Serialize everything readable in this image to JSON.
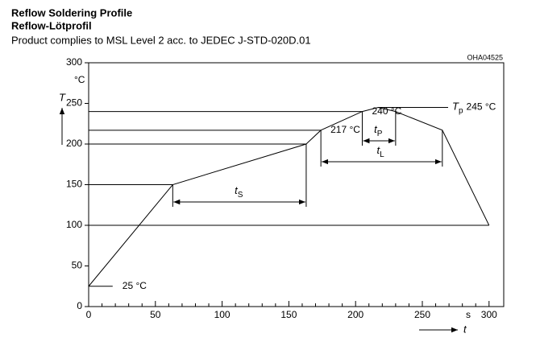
{
  "chart_data": {
    "type": "line",
    "title": "Reflow Soldering Profile",
    "subtitle": "Reflow-Lötprofil",
    "description": "Product complies to MSL Level 2 acc. to JEDEC J-STD-020D.01",
    "code": "OHA04525",
    "y_label": "T",
    "y_unit": "°C",
    "x_label": "t",
    "x_unit": "s",
    "x": [
      0,
      63,
      163,
      174,
      205,
      217,
      230,
      265,
      300
    ],
    "values": [
      25,
      150,
      200,
      217,
      240,
      245,
      240,
      217,
      100
    ],
    "color": "#000000",
    "xlim": [
      0,
      311
    ],
    "ylim": [
      0,
      300
    ],
    "xticks": [
      0,
      50,
      100,
      150,
      200,
      250,
      300
    ],
    "xminorticks": [
      10,
      20,
      30,
      40,
      60,
      70,
      80,
      90,
      110,
      120,
      130,
      140,
      160,
      170,
      180,
      190,
      210,
      220,
      230,
      240,
      260,
      270,
      280,
      290
    ],
    "yticks": [
      0,
      50,
      100,
      150,
      200,
      250,
      300
    ],
    "reference_lines": [
      {
        "value": 240,
        "x_end": 205,
        "label": "240 °C"
      },
      {
        "value": 217,
        "x_end": 174,
        "label": "217 °C"
      },
      {
        "value": 200,
        "x_end": 163
      },
      {
        "value": 150,
        "x_end": 63
      },
      {
        "value": 100,
        "x_end": 300
      },
      {
        "value": 25,
        "x_end": 18,
        "label": "25 °C"
      }
    ],
    "peak_label": {
      "symbol": "T",
      "subscript": "p",
      "text": "245 °C"
    },
    "intervals": [
      {
        "symbol": "t",
        "subscript": "S",
        "start": 63,
        "end": 163
      },
      {
        "symbol": "t",
        "subscript": "P",
        "start": 205,
        "end": 230
      },
      {
        "symbol": "t",
        "subscript": "L",
        "start": 174,
        "end": 265
      }
    ]
  }
}
